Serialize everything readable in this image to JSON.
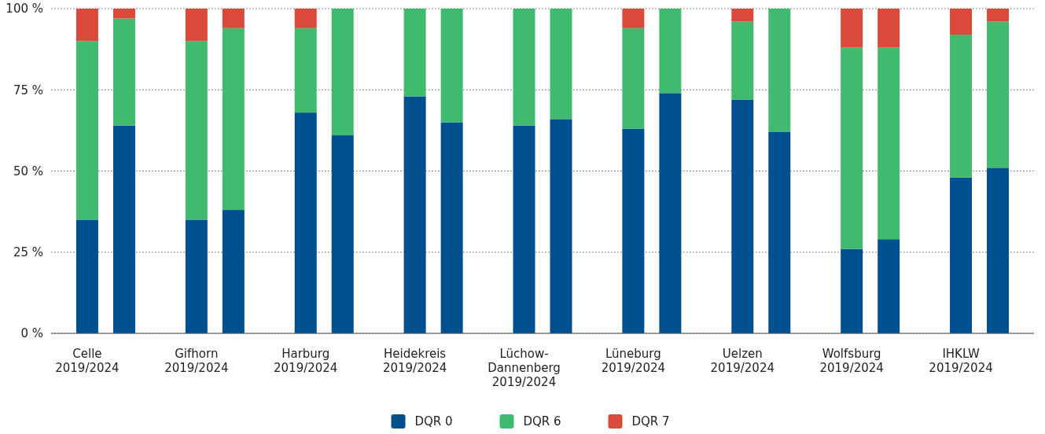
{
  "chart_data": {
    "type": "bar",
    "stacked": true,
    "categories": [
      "Celle\n2019/2024",
      null,
      "Gifhorn\n2019/2024",
      null,
      "Harburg\n2019/2024",
      null,
      "Heidekreis\n2019/2024",
      null,
      "Lüchow-\nDannenberg\n2019/2024",
      null,
      "Lüneburg\n2019/2024",
      null,
      "Uelzen\n2019/2024",
      null,
      "Wolfsburg\n2019/2024",
      null,
      "IHKLW\n2019/2024",
      null
    ],
    "series": [
      {
        "name": "DQR 0",
        "color": "#004f8f",
        "values": [
          35,
          64,
          35,
          38,
          68,
          61,
          73,
          65,
          64,
          66,
          63,
          74,
          72,
          62,
          26,
          29,
          48,
          51
        ]
      },
      {
        "name": "DQR 6",
        "color": "#3fba6f",
        "values": [
          55,
          33,
          55,
          56,
          26,
          39,
          27,
          35,
          36,
          34,
          31,
          26,
          24,
          38,
          62,
          59,
          44,
          45
        ]
      },
      {
        "name": "DQR 7",
        "color": "#d94a3a",
        "values": [
          10,
          3,
          10,
          6,
          6,
          0,
          0,
          0,
          0,
          0,
          6,
          0,
          4,
          0,
          12,
          12,
          8,
          4
        ]
      }
    ],
    "ylim": [
      0,
      100
    ],
    "yticks": [
      {
        "value": 0,
        "label": "0 %"
      },
      {
        "value": 25,
        "label": "25 %"
      },
      {
        "value": 50,
        "label": "50 %"
      },
      {
        "value": 75,
        "label": "75 %"
      },
      {
        "value": 100,
        "label": "100 %"
      }
    ],
    "grid": "y",
    "legend": "bottom"
  }
}
